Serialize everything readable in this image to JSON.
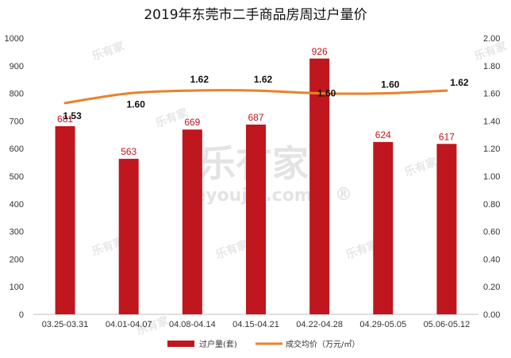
{
  "chart_data": {
    "type": "bar",
    "title": "2019年东莞市二手商品房周过户量价",
    "categories": [
      "03.25-03.31",
      "04.01-04.07",
      "04.08-04.14",
      "04.15-04.21",
      "04.22-04.28",
      "04.29-05.05",
      "05.06-05.12"
    ],
    "series": [
      {
        "name": "过户量(套)",
        "type": "bar",
        "axis": "left",
        "color": "#c0161e",
        "values": [
          681,
          563,
          669,
          687,
          926,
          624,
          617
        ],
        "labels": [
          "681",
          "563",
          "669",
          "687",
          "926",
          "624",
          "617"
        ]
      },
      {
        "name": "成交均价（万元/㎡）",
        "type": "line",
        "axis": "right",
        "color": "#e8822a",
        "values": [
          1.53,
          1.6,
          1.62,
          1.62,
          1.6,
          1.6,
          1.62
        ],
        "labels": [
          "1.53",
          "1.60",
          "1.62",
          "1.62",
          "1.60",
          "1.60",
          "1.62"
        ]
      }
    ],
    "y_left": {
      "min": 0,
      "max": 1000,
      "ticks": [
        "0",
        "100",
        "200",
        "300",
        "400",
        "500",
        "600",
        "700",
        "800",
        "900",
        "1000"
      ]
    },
    "y_right": {
      "min": 0,
      "max": 2,
      "ticks": [
        "0.00",
        "0.20",
        "0.40",
        "0.60",
        "0.80",
        "1.00",
        "1.20",
        "1.40",
        "1.60",
        "1.80",
        "2.00"
      ]
    },
    "grid": false,
    "legend_position": "bottom"
  },
  "watermark": {
    "brand": "乐有家",
    "brand_url": "Leyoujia.com",
    "brand_url_mark": "®",
    "brand_small": "乐有家"
  }
}
